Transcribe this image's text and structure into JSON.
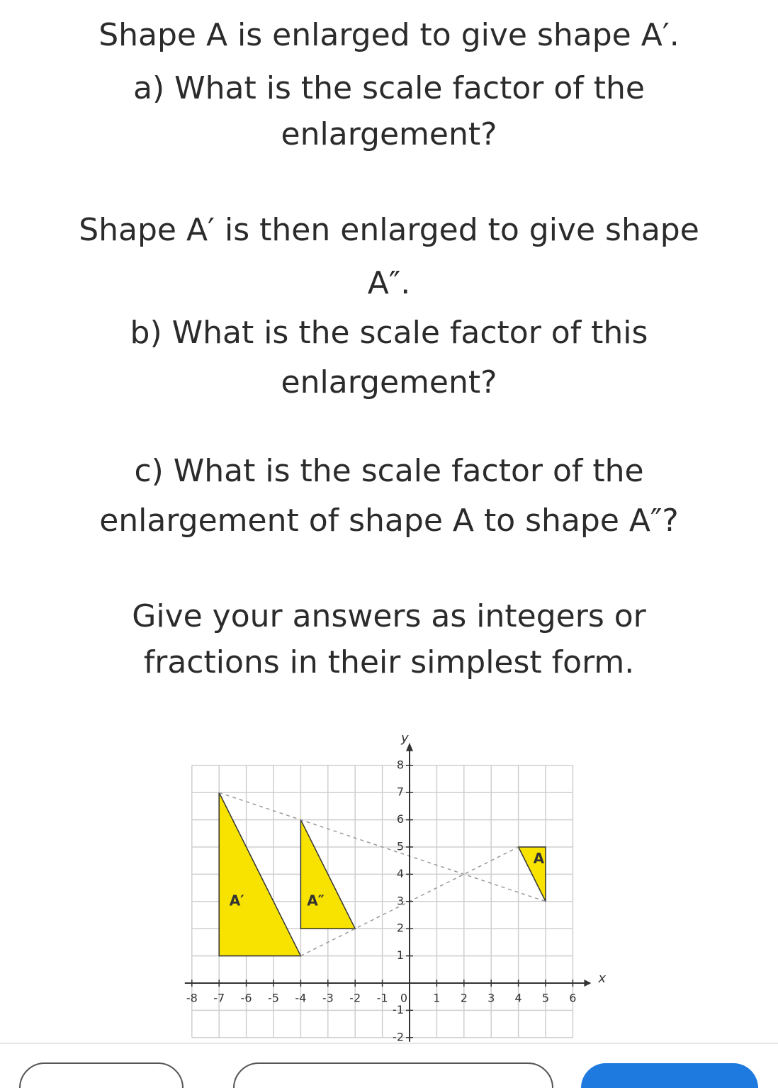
{
  "question": {
    "lines": [
      "Shape A is enlarged to give shape A′.",
      "a) What is the scale factor of the",
      "enlargement?",
      "Shape A′ is then enlarged to give shape",
      "A″.",
      "b) What is the scale factor of this",
      "enlargement?",
      "c) What is the scale factor of the",
      "enlargement of shape A to shape A″?",
      "Give your answers as integers or",
      "fractions in their simplest form."
    ]
  },
  "graph": {
    "x_label": "x",
    "y_label": "y",
    "x_ticks": [
      -8,
      -7,
      -6,
      -5,
      -4,
      -3,
      -2,
      -1,
      0,
      1,
      2,
      3,
      4,
      5,
      6
    ],
    "y_ticks": [
      8,
      7,
      6,
      5,
      4,
      3,
      2,
      1,
      -1,
      -2
    ],
    "shape_labels": [
      "A",
      "A′",
      "A″"
    ]
  }
}
